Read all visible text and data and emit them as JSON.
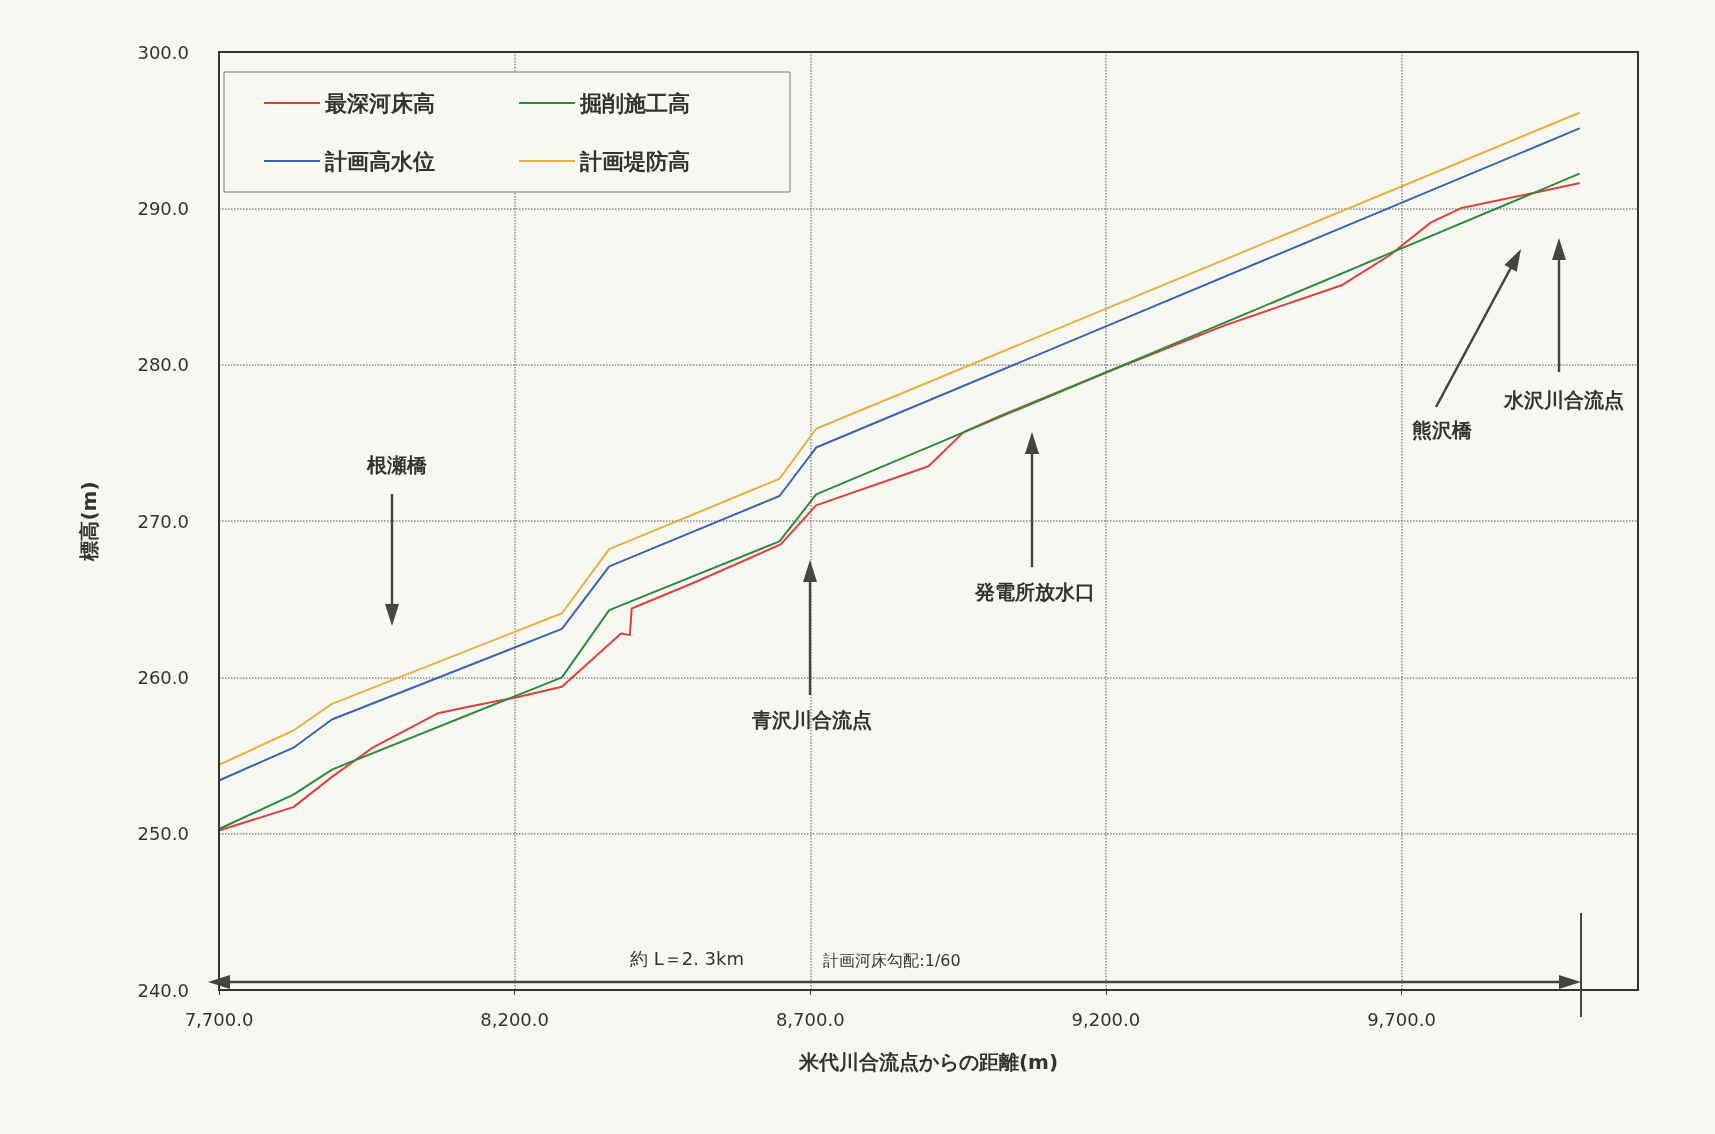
{
  "chart_data": {
    "type": "line",
    "xlabel": "米代川合流点からの距離(m)",
    "ylabel": "標高(m)",
    "xlim": [
      7700,
      10100
    ],
    "xticks": [
      {
        "value": 7700,
        "label": "7,700.0"
      },
      {
        "value": 8200,
        "label": "8,200.0"
      },
      {
        "value": 8700,
        "label": "8,700.0"
      },
      {
        "value": 9200,
        "label": "9,200.0"
      },
      {
        "value": 9700,
        "label": "9,700.0"
      }
    ],
    "ylim": [
      240,
      300
    ],
    "yticks": [
      {
        "value": 240,
        "label": "240.0"
      },
      {
        "value": 250,
        "label": "250.0"
      },
      {
        "value": 260,
        "label": "260.0"
      },
      {
        "value": 270,
        "label": "270.0"
      },
      {
        "value": 280,
        "label": "280.0"
      },
      {
        "value": 290,
        "label": "290.0"
      },
      {
        "value": 300,
        "label": "300.0"
      }
    ],
    "grid": true,
    "legend": "top left",
    "marker": "none",
    "line_style": "solid",
    "series": [
      {
        "name": "最深河床高",
        "color": "#e0403a",
        "x": [
          7700,
          7826,
          7890,
          7960,
          8070,
          8120,
          8200,
          8280,
          8380,
          8395,
          8398,
          8500,
          8650,
          8710,
          8900,
          8960,
          9020,
          9200,
          9400,
          9600,
          9680,
          9750,
          9800,
          10000
        ],
        "values": [
          250.2,
          251.7,
          253.6,
          255.5,
          257.7,
          258.1,
          258.7,
          259.4,
          262.8,
          262.7,
          264.4,
          266.0,
          268.5,
          271.0,
          273.5,
          275.7,
          276.7,
          279.5,
          282.5,
          285.1,
          287.0,
          289.1,
          290.0,
          291.6
        ]
      },
      {
        "name": "掘削施工高",
        "color": "#2e8b3e",
        "x": [
          7700,
          7826,
          7891,
          8280,
          8360,
          8648,
          8710,
          9200,
          10000
        ],
        "values": [
          250.3,
          252.5,
          254.1,
          260.0,
          264.3,
          268.7,
          271.7,
          279.5,
          292.2
        ]
      },
      {
        "name": "計画高水位",
        "color": "#3b64b0",
        "x": [
          7700,
          7826,
          7891,
          8280,
          8360,
          8648,
          8710,
          10000
        ],
        "values": [
          253.4,
          255.5,
          257.3,
          263.1,
          267.1,
          271.6,
          274.7,
          295.1
        ]
      },
      {
        "name": "計画堤防高",
        "color": "#e8b040",
        "x": [
          7700,
          7826,
          7891,
          8280,
          8360,
          8648,
          8710,
          10000
        ],
        "values": [
          254.4,
          256.6,
          258.3,
          264.1,
          268.2,
          272.7,
          275.9,
          296.1
        ]
      }
    ],
    "annotations": [
      "根瀬橋",
      "青沢川合流点",
      "発電所放水口",
      "熊沢橋",
      "水沢川合流点",
      "約 L＝2. 3km",
      "計画河床勾配:1/60"
    ]
  }
}
